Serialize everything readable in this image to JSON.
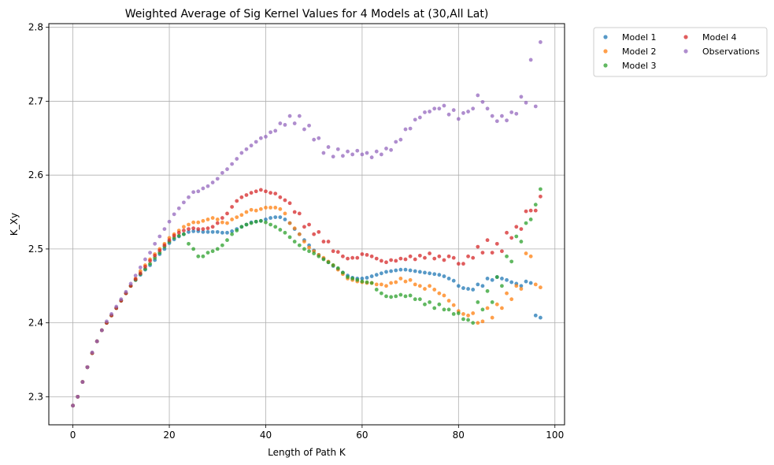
{
  "chart_data": {
    "type": "scatter",
    "title": "Weighted Average of Sig Kernel Values for 4 Models at (30,All Lat)",
    "xlabel": "Length of Path K",
    "ylabel": "K_Xy",
    "xlim": [
      -5,
      102
    ],
    "ylim": [
      2.262,
      2.805
    ],
    "xticks": [
      0,
      20,
      40,
      60,
      80,
      100
    ],
    "yticks": [
      2.3,
      2.4,
      2.5,
      2.6,
      2.7,
      2.8
    ],
    "xtick_labels": [
      "0",
      "20",
      "40",
      "60",
      "80",
      "100"
    ],
    "ytick_labels": [
      "2.3",
      "2.4",
      "2.5",
      "2.6",
      "2.7",
      "2.8"
    ],
    "grid": true,
    "legend_position": "outside-top-right",
    "legend_columns": 2,
    "series": [
      {
        "name": "Model 1",
        "color": "#1f77b4",
        "x": [
          0,
          1,
          2,
          3,
          4,
          5,
          6,
          7,
          8,
          9,
          10,
          11,
          12,
          13,
          14,
          15,
          16,
          17,
          18,
          19,
          20,
          21,
          22,
          23,
          24,
          25,
          26,
          27,
          28,
          29,
          30,
          31,
          32,
          33,
          34,
          35,
          36,
          37,
          38,
          39,
          40,
          41,
          42,
          43,
          44,
          45,
          46,
          47,
          48,
          49,
          50,
          51,
          52,
          53,
          54,
          55,
          56,
          57,
          58,
          59,
          60,
          61,
          62,
          63,
          64,
          65,
          66,
          67,
          68,
          69,
          70,
          71,
          72,
          73,
          74,
          75,
          76,
          77,
          78,
          79,
          80,
          81,
          82,
          83,
          84,
          85,
          86,
          87,
          88,
          89,
          90,
          91,
          92,
          93,
          94,
          95,
          96,
          97
        ],
        "y": [
          2.288,
          2.3,
          2.32,
          2.34,
          2.359,
          2.375,
          2.39,
          2.4,
          2.41,
          2.42,
          2.43,
          2.44,
          2.45,
          2.458,
          2.465,
          2.472,
          2.478,
          2.485,
          2.493,
          2.5,
          2.508,
          2.513,
          2.517,
          2.52,
          2.523,
          2.524,
          2.524,
          2.523,
          2.523,
          2.523,
          2.523,
          2.522,
          2.522,
          2.524,
          2.527,
          2.53,
          2.533,
          2.536,
          2.537,
          2.538,
          2.54,
          2.542,
          2.543,
          2.543,
          2.54,
          2.535,
          2.527,
          2.52,
          2.512,
          2.505,
          2.498,
          2.492,
          2.487,
          2.482,
          2.477,
          2.473,
          2.468,
          2.464,
          2.461,
          2.46,
          2.46,
          2.461,
          2.463,
          2.465,
          2.467,
          2.469,
          2.47,
          2.471,
          2.472,
          2.472,
          2.471,
          2.47,
          2.469,
          2.468,
          2.467,
          2.466,
          2.465,
          2.463,
          2.46,
          2.457,
          2.45,
          2.447,
          2.446,
          2.445,
          2.452,
          2.45,
          2.46,
          2.458,
          2.462,
          2.46,
          2.458,
          2.455,
          2.453,
          2.45,
          2.456,
          2.454,
          2.41,
          2.407
        ]
      },
      {
        "name": "Model 2",
        "color": "#ff7f0e",
        "x": [
          0,
          1,
          2,
          3,
          4,
          5,
          6,
          7,
          8,
          9,
          10,
          11,
          12,
          13,
          14,
          15,
          16,
          17,
          18,
          19,
          20,
          21,
          22,
          23,
          24,
          25,
          26,
          27,
          28,
          29,
          30,
          31,
          32,
          33,
          34,
          35,
          36,
          37,
          38,
          39,
          40,
          41,
          42,
          43,
          44,
          45,
          46,
          47,
          48,
          49,
          50,
          51,
          52,
          53,
          54,
          55,
          56,
          57,
          58,
          59,
          60,
          61,
          62,
          63,
          64,
          65,
          66,
          67,
          68,
          69,
          70,
          71,
          72,
          73,
          74,
          75,
          76,
          77,
          78,
          79,
          80,
          81,
          82,
          83,
          84,
          85,
          86,
          87,
          88,
          89,
          90,
          91,
          92,
          93,
          94,
          95,
          96,
          97
        ],
        "y": [
          2.288,
          2.3,
          2.32,
          2.34,
          2.359,
          2.375,
          2.39,
          2.4,
          2.41,
          2.42,
          2.43,
          2.44,
          2.45,
          2.46,
          2.47,
          2.478,
          2.486,
          2.493,
          2.5,
          2.507,
          2.515,
          2.52,
          2.525,
          2.53,
          2.533,
          2.536,
          2.536,
          2.538,
          2.54,
          2.542,
          2.54,
          2.536,
          2.535,
          2.54,
          2.543,
          2.546,
          2.55,
          2.553,
          2.552,
          2.554,
          2.556,
          2.556,
          2.556,
          2.554,
          2.548,
          2.535,
          2.528,
          2.52,
          2.51,
          2.502,
          2.497,
          2.492,
          2.488,
          2.483,
          2.478,
          2.472,
          2.466,
          2.46,
          2.458,
          2.456,
          2.455,
          2.454,
          2.454,
          2.452,
          2.452,
          2.45,
          2.454,
          2.455,
          2.46,
          2.456,
          2.458,
          2.452,
          2.45,
          2.446,
          2.45,
          2.445,
          2.44,
          2.437,
          2.43,
          2.424,
          2.416,
          2.412,
          2.41,
          2.413,
          2.4,
          2.402,
          2.42,
          2.407,
          2.425,
          2.42,
          2.44,
          2.432,
          2.45,
          2.446,
          2.494,
          2.49,
          2.452,
          2.448
        ]
      },
      {
        "name": "Model 3",
        "color": "#2ca02c",
        "x": [
          0,
          1,
          2,
          3,
          4,
          5,
          6,
          7,
          8,
          9,
          10,
          11,
          12,
          13,
          14,
          15,
          16,
          17,
          18,
          19,
          20,
          21,
          22,
          23,
          24,
          25,
          26,
          27,
          28,
          29,
          30,
          31,
          32,
          33,
          34,
          35,
          36,
          37,
          38,
          39,
          40,
          41,
          42,
          43,
          44,
          45,
          46,
          47,
          48,
          49,
          50,
          51,
          52,
          53,
          54,
          55,
          56,
          57,
          58,
          59,
          60,
          61,
          62,
          63,
          64,
          65,
          66,
          67,
          68,
          69,
          70,
          71,
          72,
          73,
          74,
          75,
          76,
          77,
          78,
          79,
          80,
          81,
          82,
          83,
          84,
          85,
          86,
          87,
          88,
          89,
          90,
          91,
          92,
          93,
          94,
          95,
          96,
          97
        ],
        "y": [
          2.288,
          2.3,
          2.32,
          2.34,
          2.359,
          2.375,
          2.39,
          2.4,
          2.41,
          2.42,
          2.43,
          2.44,
          2.45,
          2.458,
          2.466,
          2.473,
          2.48,
          2.488,
          2.495,
          2.503,
          2.51,
          2.515,
          2.518,
          2.52,
          2.507,
          2.5,
          2.49,
          2.49,
          2.495,
          2.497,
          2.5,
          2.505,
          2.512,
          2.52,
          2.525,
          2.53,
          2.533,
          2.535,
          2.537,
          2.538,
          2.536,
          2.533,
          2.53,
          2.526,
          2.522,
          2.516,
          2.51,
          2.505,
          2.5,
          2.497,
          2.494,
          2.49,
          2.486,
          2.482,
          2.478,
          2.474,
          2.468,
          2.462,
          2.46,
          2.458,
          2.456,
          2.455,
          2.454,
          2.445,
          2.44,
          2.436,
          2.435,
          2.436,
          2.438,
          2.436,
          2.437,
          2.432,
          2.432,
          2.425,
          2.428,
          2.42,
          2.425,
          2.418,
          2.418,
          2.412,
          2.413,
          2.405,
          2.404,
          2.4,
          2.428,
          2.418,
          2.443,
          2.428,
          2.462,
          2.45,
          2.49,
          2.483,
          2.517,
          2.51,
          2.535,
          2.54,
          2.56,
          2.581
        ]
      },
      {
        "name": "Model 4",
        "color": "#d62728",
        "x": [
          0,
          1,
          2,
          3,
          4,
          5,
          6,
          7,
          8,
          9,
          10,
          11,
          12,
          13,
          14,
          15,
          16,
          17,
          18,
          19,
          20,
          21,
          22,
          23,
          24,
          25,
          26,
          27,
          28,
          29,
          30,
          31,
          32,
          33,
          34,
          35,
          36,
          37,
          38,
          39,
          40,
          41,
          42,
          43,
          44,
          45,
          46,
          47,
          48,
          49,
          50,
          51,
          52,
          53,
          54,
          55,
          56,
          57,
          58,
          59,
          60,
          61,
          62,
          63,
          64,
          65,
          66,
          67,
          68,
          69,
          70,
          71,
          72,
          73,
          74,
          75,
          76,
          77,
          78,
          79,
          80,
          81,
          82,
          83,
          84,
          85,
          86,
          87,
          88,
          89,
          90,
          91,
          92,
          93,
          94,
          95,
          96,
          97
        ],
        "y": [
          2.288,
          2.3,
          2.32,
          2.34,
          2.359,
          2.375,
          2.39,
          2.4,
          2.41,
          2.42,
          2.43,
          2.44,
          2.45,
          2.459,
          2.467,
          2.476,
          2.484,
          2.491,
          2.498,
          2.505,
          2.512,
          2.518,
          2.522,
          2.525,
          2.527,
          2.528,
          2.527,
          2.527,
          2.528,
          2.53,
          2.535,
          2.542,
          2.548,
          2.557,
          2.565,
          2.57,
          2.573,
          2.576,
          2.578,
          2.58,
          2.578,
          2.576,
          2.575,
          2.57,
          2.566,
          2.562,
          2.55,
          2.548,
          2.53,
          2.533,
          2.52,
          2.523,
          2.51,
          2.51,
          2.497,
          2.496,
          2.49,
          2.487,
          2.488,
          2.488,
          2.493,
          2.492,
          2.49,
          2.487,
          2.484,
          2.482,
          2.485,
          2.484,
          2.487,
          2.486,
          2.49,
          2.486,
          2.491,
          2.488,
          2.494,
          2.487,
          2.49,
          2.485,
          2.49,
          2.488,
          2.48,
          2.48,
          2.49,
          2.488,
          2.503,
          2.495,
          2.512,
          2.495,
          2.507,
          2.497,
          2.522,
          2.515,
          2.53,
          2.527,
          2.551,
          2.552,
          2.552,
          2.571
        ]
      },
      {
        "name": "Observations",
        "color": "#9467bd",
        "x": [
          0,
          1,
          2,
          3,
          4,
          5,
          6,
          7,
          8,
          9,
          10,
          11,
          12,
          13,
          14,
          15,
          16,
          17,
          18,
          19,
          20,
          21,
          22,
          23,
          24,
          25,
          26,
          27,
          28,
          29,
          30,
          31,
          32,
          33,
          34,
          35,
          36,
          37,
          38,
          39,
          40,
          41,
          42,
          43,
          44,
          45,
          46,
          47,
          48,
          49,
          50,
          51,
          52,
          53,
          54,
          55,
          56,
          57,
          58,
          59,
          60,
          61,
          62,
          63,
          64,
          65,
          66,
          67,
          68,
          69,
          70,
          71,
          72,
          73,
          74,
          75,
          76,
          77,
          78,
          79,
          80,
          81,
          82,
          83,
          84,
          85,
          86,
          87,
          88,
          89,
          90,
          91,
          92,
          93,
          94,
          95,
          96,
          97
        ],
        "y": [
          2.288,
          2.3,
          2.32,
          2.34,
          2.36,
          2.375,
          2.39,
          2.402,
          2.412,
          2.422,
          2.432,
          2.442,
          2.453,
          2.464,
          2.475,
          2.486,
          2.495,
          2.507,
          2.517,
          2.527,
          2.537,
          2.547,
          2.555,
          2.563,
          2.57,
          2.577,
          2.578,
          2.582,
          2.585,
          2.59,
          2.595,
          2.603,
          2.608,
          2.615,
          2.622,
          2.63,
          2.635,
          2.64,
          2.645,
          2.65,
          2.652,
          2.658,
          2.66,
          2.67,
          2.668,
          2.68,
          2.67,
          2.68,
          2.662,
          2.667,
          2.648,
          2.65,
          2.63,
          2.638,
          2.625,
          2.635,
          2.626,
          2.632,
          2.628,
          2.633,
          2.628,
          2.63,
          2.624,
          2.632,
          2.628,
          2.636,
          2.634,
          2.645,
          2.648,
          2.662,
          2.663,
          2.675,
          2.678,
          2.685,
          2.686,
          2.69,
          2.69,
          2.694,
          2.682,
          2.688,
          2.676,
          2.684,
          2.686,
          2.69,
          2.708,
          2.699,
          2.69,
          2.68,
          2.673,
          2.68,
          2.674,
          2.685,
          2.683,
          2.706,
          2.698,
          2.756,
          2.693,
          2.78
        ]
      }
    ]
  }
}
